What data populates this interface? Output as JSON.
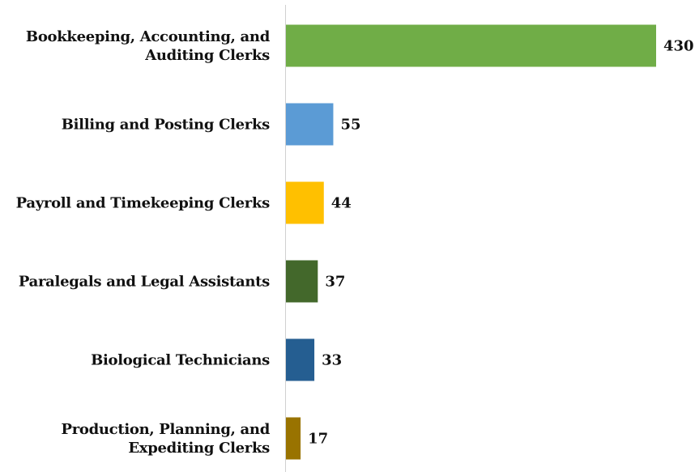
{
  "chart_data": {
    "type": "bar",
    "orientation": "horizontal",
    "categories": [
      "Bookkeeping, Accounting, and\nAuditing Clerks",
      "Billing and Posting Clerks",
      "Payroll and Timekeeping Clerks",
      "Paralegals and Legal Assistants",
      "Biological Technicians",
      "Production, Planning, and\nExpediting Clerks"
    ],
    "values": [
      430,
      55,
      44,
      37,
      33,
      17
    ],
    "colors": [
      "#70ad47",
      "#5b9bd5",
      "#ffc000",
      "#43682b",
      "#255e91",
      "#997300"
    ]
  }
}
